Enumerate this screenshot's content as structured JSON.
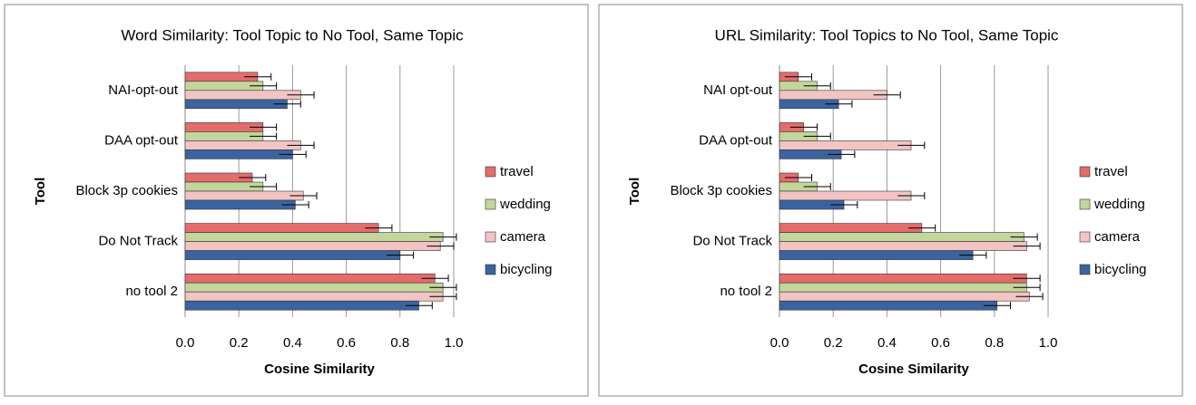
{
  "chart_data": [
    {
      "type": "bar",
      "orientation": "horizontal",
      "title": "Word Similarity: Tool Topic to No Tool, Same Topic",
      "x_label": "Cosine Similarity",
      "y_label": "Tool",
      "categories": [
        "NAI-opt-out",
        "DAA opt-out",
        "Block 3p cookies",
        "Do Not Track",
        "no tool 2"
      ],
      "series": [
        {
          "name": "travel",
          "color": "#e46c6c",
          "values": [
            0.27,
            0.29,
            0.25,
            0.72,
            0.93
          ],
          "errors": [
            0.05,
            0.05,
            0.05,
            0.05,
            0.05
          ]
        },
        {
          "name": "wedding",
          "color": "#c3d69b",
          "values": [
            0.29,
            0.29,
            0.29,
            0.96,
            0.96
          ],
          "errors": [
            0.05,
            0.05,
            0.05,
            0.05,
            0.05
          ]
        },
        {
          "name": "camera",
          "color": "#f2c4c4",
          "values": [
            0.43,
            0.43,
            0.44,
            0.95,
            0.96
          ],
          "errors": [
            0.05,
            0.05,
            0.05,
            0.05,
            0.05
          ]
        },
        {
          "name": "bicycling",
          "color": "#3a64a0",
          "values": [
            0.38,
            0.4,
            0.41,
            0.8,
            0.87
          ],
          "errors": [
            0.05,
            0.05,
            0.05,
            0.05,
            0.05
          ]
        }
      ],
      "xlim": [
        0,
        1
      ],
      "xticks": [
        {
          "value": 0,
          "label": "0.0"
        },
        0.2,
        0.4,
        0.6,
        0.8,
        {
          "value": 1,
          "label": "1.0"
        }
      ],
      "grid": true,
      "legend": "right"
    },
    {
      "type": "bar",
      "orientation": "horizontal",
      "title": "URL Similarity: Tool Topics to No Tool, Same Topic",
      "x_label": "Cosine Similarity",
      "y_label": "Tool",
      "categories": [
        "NAI opt-out",
        "DAA opt-out",
        "Block 3p cookies",
        "Do Not Track",
        "no tool 2"
      ],
      "series": [
        {
          "name": "travel",
          "color": "#e46c6c",
          "values": [
            0.07,
            0.09,
            0.07,
            0.53,
            0.92
          ],
          "errors": [
            0.05,
            0.05,
            0.05,
            0.05,
            0.05
          ]
        },
        {
          "name": "wedding",
          "color": "#c3d69b",
          "values": [
            0.14,
            0.14,
            0.14,
            0.91,
            0.92
          ],
          "errors": [
            0.05,
            0.05,
            0.05,
            0.05,
            0.05
          ]
        },
        {
          "name": "camera",
          "color": "#f2c4c4",
          "values": [
            0.4,
            0.49,
            0.49,
            0.92,
            0.93
          ],
          "errors": [
            0.05,
            0.05,
            0.05,
            0.05,
            0.05
          ]
        },
        {
          "name": "bicycling",
          "color": "#3a64a0",
          "values": [
            0.22,
            0.23,
            0.24,
            0.72,
            0.81
          ],
          "errors": [
            0.05,
            0.05,
            0.05,
            0.05,
            0.05
          ]
        }
      ],
      "xlim": [
        0,
        1
      ],
      "xticks": [
        {
          "value": 0,
          "label": "0.0"
        },
        0.2,
        0.4,
        0.6,
        0.8,
        {
          "value": 1,
          "label": "1.0"
        }
      ],
      "grid": true,
      "legend": "right"
    }
  ]
}
